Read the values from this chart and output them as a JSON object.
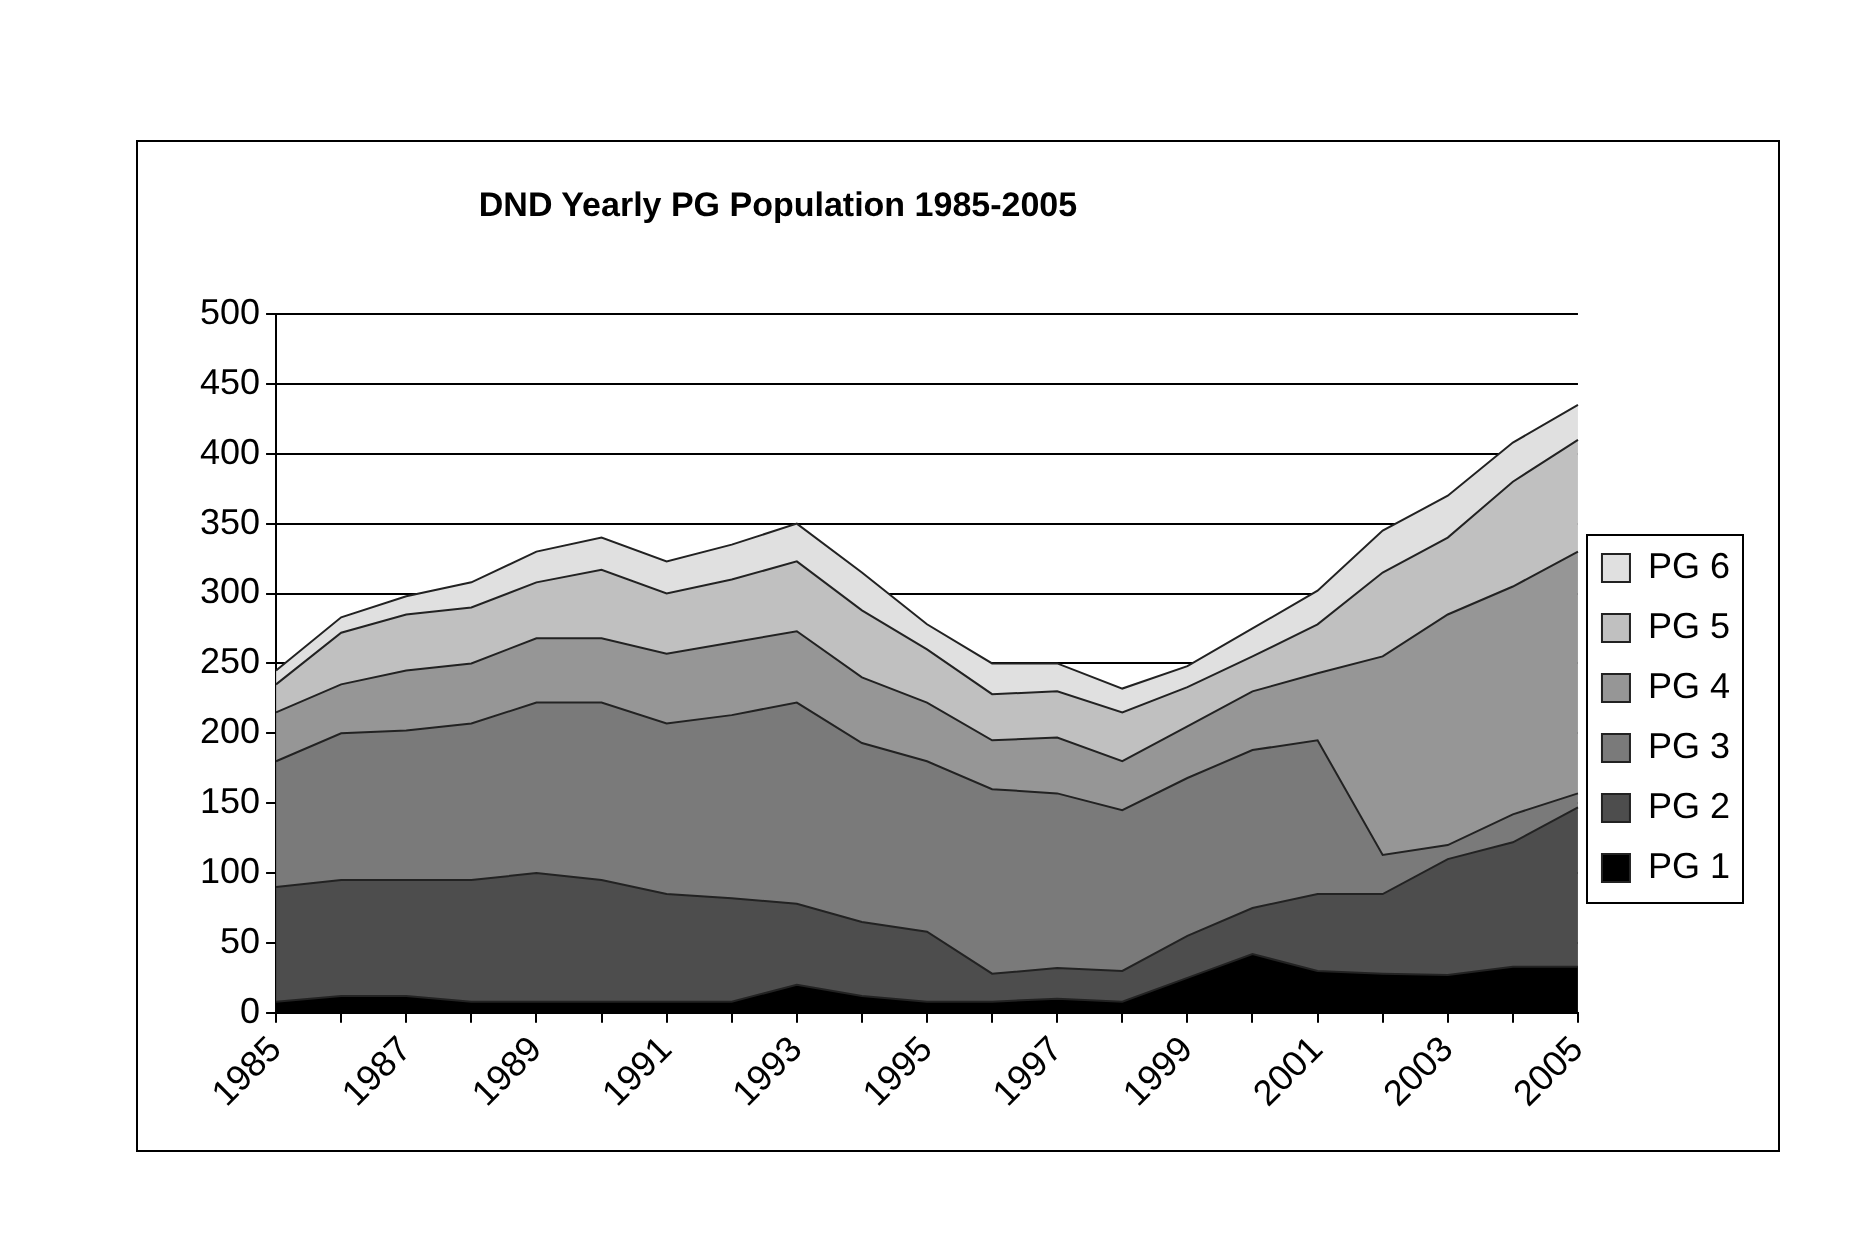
{
  "chart_data": {
    "type": "area",
    "title": "DND Yearly PG Population 1985-2005",
    "categories": [
      "1985",
      null,
      "1987",
      null,
      "1989",
      null,
      "1991",
      null,
      "1993",
      null,
      "1995",
      null,
      "1997",
      null,
      "1999",
      null,
      "2001",
      null,
      "2003",
      null,
      "2005"
    ],
    "series": [
      {
        "name": "PG 1",
        "color": "#000000",
        "values": [
          8,
          12,
          12,
          8,
          8,
          8,
          8,
          8,
          20,
          12,
          8,
          8,
          10,
          8,
          25,
          42,
          30,
          28,
          27,
          33,
          33
        ]
      },
      {
        "name": "PG 2",
        "color": "#4d4d4d",
        "values": [
          82,
          83,
          83,
          87,
          92,
          87,
          77,
          74,
          58,
          53,
          50,
          20,
          22,
          22,
          30,
          33,
          55,
          57,
          83,
          89,
          114
        ]
      },
      {
        "name": "PG 3",
        "color": "#7a7a7a",
        "values": [
          90,
          105,
          107,
          112,
          122,
          127,
          122,
          131,
          144,
          128,
          122,
          132,
          125,
          115,
          113,
          113,
          110,
          28,
          10,
          20,
          10
        ]
      },
      {
        "name": "PG 4",
        "color": "#969696",
        "values": [
          35,
          35,
          43,
          43,
          46,
          46,
          50,
          52,
          51,
          47,
          42,
          35,
          40,
          35,
          37,
          42,
          48,
          142,
          165,
          163,
          173
        ]
      },
      {
        "name": "PG 5",
        "color": "#c0c0c0",
        "values": [
          20,
          37,
          40,
          40,
          40,
          49,
          43,
          45,
          50,
          48,
          38,
          33,
          33,
          35,
          28,
          25,
          35,
          60,
          55,
          75,
          80
        ]
      },
      {
        "name": "PG 6",
        "color": "#e0e0e0",
        "values": [
          10,
          11,
          13,
          18,
          22,
          23,
          23,
          25,
          27,
          27,
          18,
          22,
          20,
          17,
          15,
          20,
          24,
          30,
          30,
          28,
          25
        ]
      }
    ],
    "stacked": true,
    "ylim": [
      0,
      500
    ],
    "yticks": [
      0,
      50,
      100,
      150,
      200,
      250,
      300,
      350,
      400,
      450,
      500
    ],
    "grid": "y",
    "legend": "right",
    "marker": "none"
  }
}
